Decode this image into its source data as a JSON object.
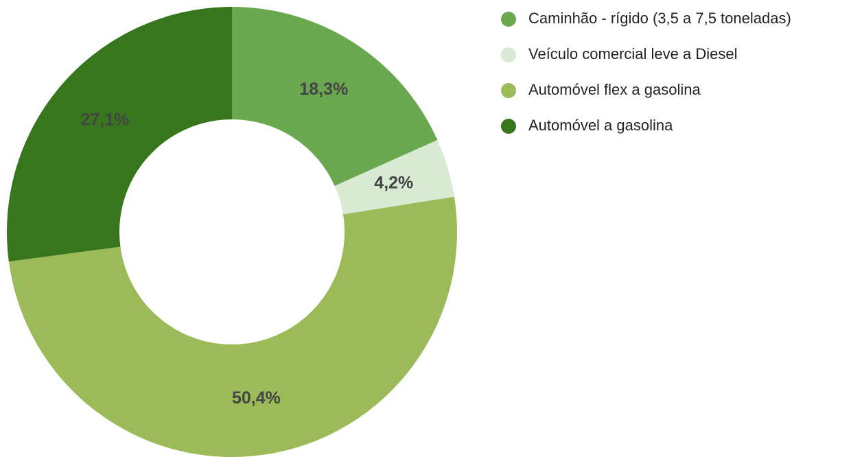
{
  "chart_data": {
    "type": "donut",
    "categories": [
      "Caminhão - rígido (3,5 a 7,5 toneladas)",
      "Veículo comercial leve a Diesel",
      "Automóvel flex a gasolina",
      "Automóvel a gasolina"
    ],
    "values": [
      18.3,
      4.2,
      50.4,
      27.1
    ],
    "value_labels": [
      "18,3%",
      "4,2%",
      "50,4%",
      "27,1%"
    ],
    "colors": [
      "#6aa84f",
      "#d9ead3",
      "#9bbb59",
      "#38761d"
    ],
    "legend": "top-right"
  }
}
